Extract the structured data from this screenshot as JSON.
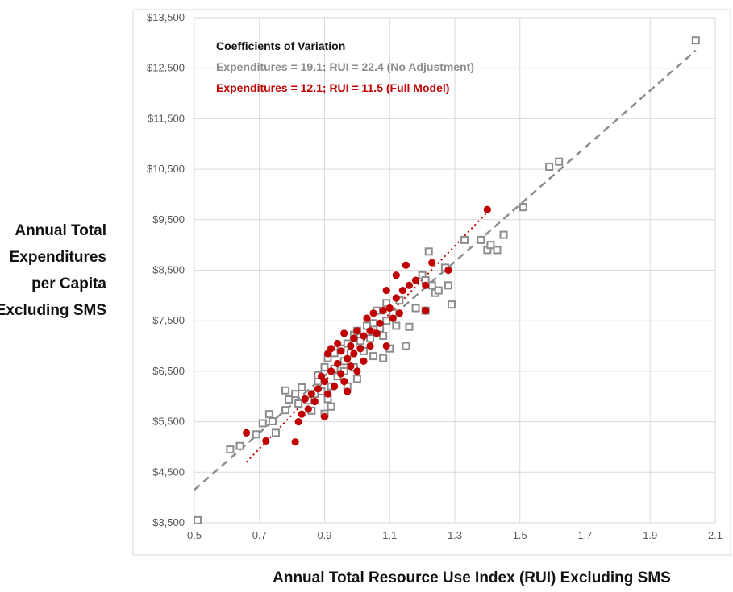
{
  "chart_data": {
    "type": "scatter",
    "xlabel": "Annual Total Resource Use Index (RUI) Excluding SMS",
    "ylabel_lines": [
      "Annual Total",
      "Expenditures",
      "per Capita",
      "Excluding SMS"
    ],
    "xlim": [
      0.5,
      2.1
    ],
    "ylim": [
      3500,
      13500
    ],
    "x_ticks": [
      0.5,
      0.7,
      0.9,
      1.1,
      1.3,
      1.5,
      1.7,
      1.9,
      2.1
    ],
    "x_tick_labels": [
      "0.5",
      "0.7",
      "0.9",
      "1.1",
      "1.3",
      "1.5",
      "1.7",
      "1.9",
      "2.1"
    ],
    "y_ticks": [
      3500,
      4500,
      5500,
      6500,
      7500,
      8500,
      9500,
      10500,
      11500,
      12500,
      13500
    ],
    "y_tick_labels": [
      "$3,500",
      "$4,500",
      "$5,500",
      "$6,500",
      "$7,500",
      "$8,500",
      "$9,500",
      "$10,500",
      "$11,500",
      "$12,500",
      "$13,500"
    ],
    "grid": true,
    "annotations": {
      "heading": "Coefficients of Variation",
      "line1": "Expenditures = 19.1; RUI = 22.4 (No Adjustment)",
      "line2": "Expenditures = 12.1; RUI = 11.5 (Full Model)"
    },
    "colors": {
      "no_adjustment": "#8c8c8c",
      "full_model": "#c00000",
      "grid": "#d9d9d9"
    },
    "series": [
      {
        "key": "no_adjustment",
        "marker": "hollow-square",
        "trendline": {
          "style": "dashed",
          "x": [
            0.5,
            2.04
          ],
          "y": [
            4150,
            12850
          ]
        },
        "points": [
          [
            0.51,
            3550
          ],
          [
            0.61,
            4950
          ],
          [
            0.64,
            5020
          ],
          [
            0.69,
            5250
          ],
          [
            0.71,
            5470
          ],
          [
            0.73,
            5650
          ],
          [
            0.74,
            5510
          ],
          [
            0.75,
            5280
          ],
          [
            0.78,
            5730
          ],
          [
            0.78,
            6120
          ],
          [
            0.79,
            5940
          ],
          [
            0.81,
            6050
          ],
          [
            0.82,
            5860
          ],
          [
            0.83,
            6180
          ],
          [
            0.85,
            5920
          ],
          [
            0.86,
            5720
          ],
          [
            0.87,
            6050
          ],
          [
            0.88,
            6300
          ],
          [
            0.88,
            6420
          ],
          [
            0.89,
            6100
          ],
          [
            0.9,
            5660
          ],
          [
            0.9,
            6580
          ],
          [
            0.91,
            5950
          ],
          [
            0.91,
            6760
          ],
          [
            0.92,
            5800
          ],
          [
            0.92,
            6200
          ],
          [
            0.93,
            6550
          ],
          [
            0.93,
            6860
          ],
          [
            0.94,
            6400
          ],
          [
            0.95,
            6950
          ],
          [
            0.96,
            6700
          ],
          [
            0.96,
            6500
          ],
          [
            0.97,
            7050
          ],
          [
            0.97,
            6200
          ],
          [
            0.98,
            6860
          ],
          [
            0.99,
            7220
          ],
          [
            0.99,
            6580
          ],
          [
            1.0,
            7300
          ],
          [
            1.0,
            6350
          ],
          [
            1.01,
            7100
          ],
          [
            1.02,
            6900
          ],
          [
            1.03,
            7400
          ],
          [
            1.04,
            7150
          ],
          [
            1.05,
            7450
          ],
          [
            1.05,
            6800
          ],
          [
            1.06,
            7700
          ],
          [
            1.07,
            7350
          ],
          [
            1.08,
            7200
          ],
          [
            1.08,
            6760
          ],
          [
            1.09,
            7850
          ],
          [
            1.09,
            7500
          ],
          [
            1.1,
            6950
          ],
          [
            1.11,
            7650
          ],
          [
            1.12,
            7400
          ],
          [
            1.13,
            7900
          ],
          [
            1.15,
            7000
          ],
          [
            1.16,
            7380
          ],
          [
            1.18,
            7750
          ],
          [
            1.2,
            8400
          ],
          [
            1.21,
            8300
          ],
          [
            1.21,
            7700
          ],
          [
            1.22,
            8870
          ],
          [
            1.23,
            8200
          ],
          [
            1.24,
            8050
          ],
          [
            1.25,
            8100
          ],
          [
            1.27,
            8550
          ],
          [
            1.28,
            8200
          ],
          [
            1.29,
            7820
          ],
          [
            1.33,
            9100
          ],
          [
            1.38,
            9100
          ],
          [
            1.4,
            8900
          ],
          [
            1.41,
            9000
          ],
          [
            1.43,
            8900
          ],
          [
            1.45,
            9200
          ],
          [
            1.51,
            9750
          ],
          [
            1.59,
            10550
          ],
          [
            1.62,
            10650
          ],
          [
            2.04,
            13050
          ]
        ]
      },
      {
        "key": "full_model",
        "marker": "filled-circle",
        "trendline": {
          "style": "dotted",
          "x": [
            0.66,
            1.4
          ],
          "y": [
            4700,
            9650
          ]
        },
        "points": [
          [
            0.66,
            5280
          ],
          [
            0.72,
            5120
          ],
          [
            0.81,
            5100
          ],
          [
            0.82,
            5500
          ],
          [
            0.83,
            5650
          ],
          [
            0.84,
            5950
          ],
          [
            0.85,
            5750
          ],
          [
            0.86,
            6050
          ],
          [
            0.87,
            5900
          ],
          [
            0.88,
            6150
          ],
          [
            0.89,
            6400
          ],
          [
            0.9,
            5600
          ],
          [
            0.9,
            6300
          ],
          [
            0.91,
            6050
          ],
          [
            0.91,
            6850
          ],
          [
            0.92,
            6500
          ],
          [
            0.92,
            6950
          ],
          [
            0.93,
            6200
          ],
          [
            0.94,
            6650
          ],
          [
            0.94,
            7050
          ],
          [
            0.95,
            6450
          ],
          [
            0.95,
            6900
          ],
          [
            0.96,
            7250
          ],
          [
            0.96,
            6300
          ],
          [
            0.97,
            6750
          ],
          [
            0.97,
            6100
          ],
          [
            0.98,
            7000
          ],
          [
            0.98,
            6600
          ],
          [
            0.99,
            7150
          ],
          [
            0.99,
            6850
          ],
          [
            1.0,
            6500
          ],
          [
            1.0,
            7300
          ],
          [
            1.01,
            6950
          ],
          [
            1.02,
            7200
          ],
          [
            1.02,
            6700
          ],
          [
            1.03,
            7550
          ],
          [
            1.04,
            7300
          ],
          [
            1.04,
            7000
          ],
          [
            1.05,
            7650
          ],
          [
            1.06,
            7250
          ],
          [
            1.07,
            7450
          ],
          [
            1.08,
            7700
          ],
          [
            1.09,
            8100
          ],
          [
            1.09,
            7000
          ],
          [
            1.1,
            7750
          ],
          [
            1.11,
            7550
          ],
          [
            1.12,
            8400
          ],
          [
            1.12,
            7950
          ],
          [
            1.13,
            7650
          ],
          [
            1.14,
            8100
          ],
          [
            1.15,
            8600
          ],
          [
            1.16,
            8200
          ],
          [
            1.18,
            8300
          ],
          [
            1.21,
            8200
          ],
          [
            1.21,
            7700
          ],
          [
            1.23,
            8650
          ],
          [
            1.28,
            8500
          ],
          [
            1.4,
            9700
          ]
        ]
      }
    ]
  }
}
